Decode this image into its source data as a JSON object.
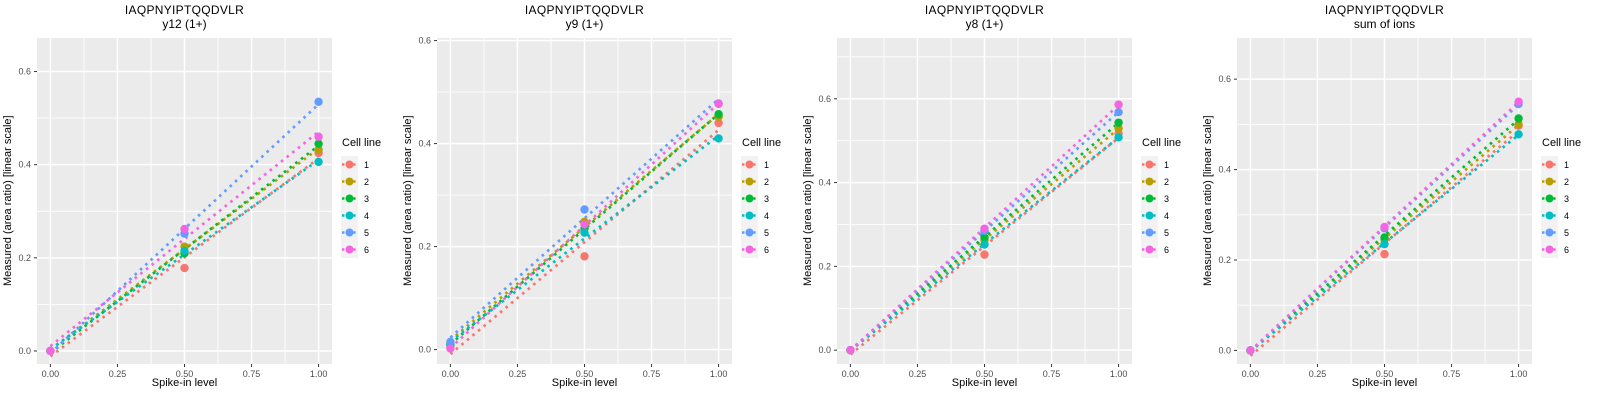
{
  "colors": {
    "page_bg": "#FFFFFF",
    "panel_bg": "#EBEBEB",
    "grid": "#FFFFFF",
    "tick_mark": "#333333",
    "tick_label": "#4D4D4D",
    "text": "#000000",
    "legend_key_bg": "#F2F2F2"
  },
  "legend": {
    "title": "Cell line",
    "items": [
      {
        "label": "1",
        "color": "#F8766D"
      },
      {
        "label": "2",
        "color": "#B79F00"
      },
      {
        "label": "3",
        "color": "#00BA38"
      },
      {
        "label": "4",
        "color": "#00BFC4"
      },
      {
        "label": "5",
        "color": "#619CFF"
      },
      {
        "label": "6",
        "color": "#F564E3"
      }
    ]
  },
  "chart_data": [
    {
      "type": "scatter",
      "title": "IAQPNYIPTQQDVLR",
      "subtitle": "y12 (1+)",
      "xlabel": "Spike-in level",
      "ylabel": "Measured (area ratio) [linear scale]",
      "trend": "linear-fit-dotted",
      "x": [
        0,
        0.5,
        1
      ],
      "xlim": [
        -0.05,
        1.05
      ],
      "ylim": [
        -0.028,
        0.672
      ],
      "xticks": {
        "values": [
          0,
          0.25,
          0.5,
          0.75,
          1
        ],
        "labels": [
          "0.00",
          "0.25",
          "0.50",
          "0.75",
          "1.00"
        ]
      },
      "yticks": {
        "values": [
          0,
          0.2,
          0.4,
          0.6
        ],
        "labels": [
          "0.0",
          "0.2",
          "0.4",
          "0.6"
        ]
      },
      "x_minor": [
        0.125,
        0.375,
        0.625,
        0.875
      ],
      "y_minor": [
        0.1,
        0.3,
        0.5,
        0.7
      ],
      "series": [
        {
          "name": "1",
          "color": "#F8766D",
          "values": [
            0.0,
            0.178,
            0.425
          ]
        },
        {
          "name": "2",
          "color": "#B79F00",
          "values": [
            0.0,
            0.224,
            0.432
          ]
        },
        {
          "name": "3",
          "color": "#00BA38",
          "values": [
            0.0,
            0.21,
            0.445
          ]
        },
        {
          "name": "4",
          "color": "#00BFC4",
          "values": [
            0.0,
            0.215,
            0.406
          ]
        },
        {
          "name": "5",
          "color": "#619CFF",
          "values": [
            0.0,
            0.252,
            0.535
          ]
        },
        {
          "name": "6",
          "color": "#F564E3",
          "values": [
            0.0,
            0.262,
            0.46
          ]
        }
      ]
    },
    {
      "type": "scatter",
      "title": "IAQPNYIPTQQDVLR",
      "subtitle": "y9 (1+)",
      "xlabel": "Spike-in level",
      "ylabel": "Measured (area ratio) [linear scale]",
      "trend": "linear-fit-dotted",
      "x": [
        0,
        0.5,
        1
      ],
      "xlim": [
        -0.05,
        1.05
      ],
      "ylim": [
        -0.028,
        0.605
      ],
      "xticks": {
        "values": [
          0,
          0.25,
          0.5,
          0.75,
          1
        ],
        "labels": [
          "0.00",
          "0.25",
          "0.50",
          "0.75",
          "1.00"
        ]
      },
      "yticks": {
        "values": [
          0,
          0.2,
          0.4,
          0.6
        ],
        "labels": [
          "0.0",
          "0.2",
          "0.4",
          "0.6"
        ]
      },
      "x_minor": [
        0.125,
        0.375,
        0.625,
        0.875
      ],
      "y_minor": [
        0.1,
        0.3,
        0.5,
        0.7
      ],
      "series": [
        {
          "name": "1",
          "color": "#F8766D",
          "values": [
            0.005,
            0.181,
            0.44
          ]
        },
        {
          "name": "2",
          "color": "#B79F00",
          "values": [
            0.013,
            0.248,
            0.452
          ]
        },
        {
          "name": "3",
          "color": "#00BA38",
          "values": [
            0.01,
            0.235,
            0.457
          ]
        },
        {
          "name": "4",
          "color": "#00BFC4",
          "values": [
            0.01,
            0.227,
            0.41
          ]
        },
        {
          "name": "5",
          "color": "#619CFF",
          "values": [
            0.015,
            0.272,
            0.478
          ]
        },
        {
          "name": "6",
          "color": "#F564E3",
          "values": [
            0.002,
            0.243,
            0.477
          ]
        }
      ]
    },
    {
      "type": "scatter",
      "title": "IAQPNYIPTQQDVLR",
      "subtitle": "y8 (1+)",
      "xlabel": "Spike-in level",
      "ylabel": "Measured (area ratio) [linear scale]",
      "trend": "linear-fit-dotted",
      "x": [
        0,
        0.5,
        1
      ],
      "xlim": [
        -0.05,
        1.05
      ],
      "ylim": [
        -0.033,
        0.745
      ],
      "xticks": {
        "values": [
          0,
          0.25,
          0.5,
          0.75,
          1
        ],
        "labels": [
          "0.00",
          "0.25",
          "0.50",
          "0.75",
          "1.00"
        ]
      },
      "yticks": {
        "values": [
          0,
          0.2,
          0.4,
          0.6
        ],
        "labels": [
          "0.0",
          "0.2",
          "0.4",
          "0.6"
        ]
      },
      "x_minor": [
        0.125,
        0.375,
        0.625,
        0.875
      ],
      "y_minor": [
        0.1,
        0.3,
        0.5,
        0.7
      ],
      "series": [
        {
          "name": "1",
          "color": "#F8766D",
          "values": [
            0.0,
            0.228,
            0.517
          ]
        },
        {
          "name": "2",
          "color": "#B79F00",
          "values": [
            0.0,
            0.263,
            0.529
          ]
        },
        {
          "name": "3",
          "color": "#00BA38",
          "values": [
            0.0,
            0.269,
            0.543
          ]
        },
        {
          "name": "4",
          "color": "#00BFC4",
          "values": [
            0.0,
            0.252,
            0.508
          ]
        },
        {
          "name": "5",
          "color": "#619CFF",
          "values": [
            0.0,
            0.285,
            0.568
          ]
        },
        {
          "name": "6",
          "color": "#F564E3",
          "values": [
            0.0,
            0.29,
            0.586
          ]
        }
      ]
    },
    {
      "type": "scatter",
      "title": "IAQPNYIPTQQDVLR",
      "subtitle": "sum of ions",
      "xlabel": "Spike-in level",
      "ylabel": "Measured (area ratio) [linear scale]",
      "trend": "linear-fit-dotted",
      "x": [
        0,
        0.5,
        1
      ],
      "xlim": [
        -0.05,
        1.05
      ],
      "ylim": [
        -0.03,
        0.691
      ],
      "xticks": {
        "values": [
          0,
          0.25,
          0.5,
          0.75,
          1
        ],
        "labels": [
          "0.00",
          "0.25",
          "0.50",
          "0.75",
          "1.00"
        ]
      },
      "yticks": {
        "values": [
          0,
          0.2,
          0.4,
          0.6
        ],
        "labels": [
          "0.0",
          "0.2",
          "0.4",
          "0.6"
        ]
      },
      "x_minor": [
        0.125,
        0.375,
        0.625,
        0.875
      ],
      "y_minor": [
        0.1,
        0.3,
        0.5,
        0.7
      ],
      "series": [
        {
          "name": "1",
          "color": "#F8766D",
          "values": [
            0.0,
            0.213,
            0.497
          ]
        },
        {
          "name": "2",
          "color": "#B79F00",
          "values": [
            0.0,
            0.245,
            0.5
          ]
        },
        {
          "name": "3",
          "color": "#00BA38",
          "values": [
            0.0,
            0.25,
            0.513
          ]
        },
        {
          "name": "4",
          "color": "#00BFC4",
          "values": [
            0.0,
            0.235,
            0.478
          ]
        },
        {
          "name": "5",
          "color": "#619CFF",
          "values": [
            0.0,
            0.27,
            0.545
          ]
        },
        {
          "name": "6",
          "color": "#F564E3",
          "values": [
            0.0,
            0.273,
            0.55
          ]
        }
      ]
    }
  ]
}
